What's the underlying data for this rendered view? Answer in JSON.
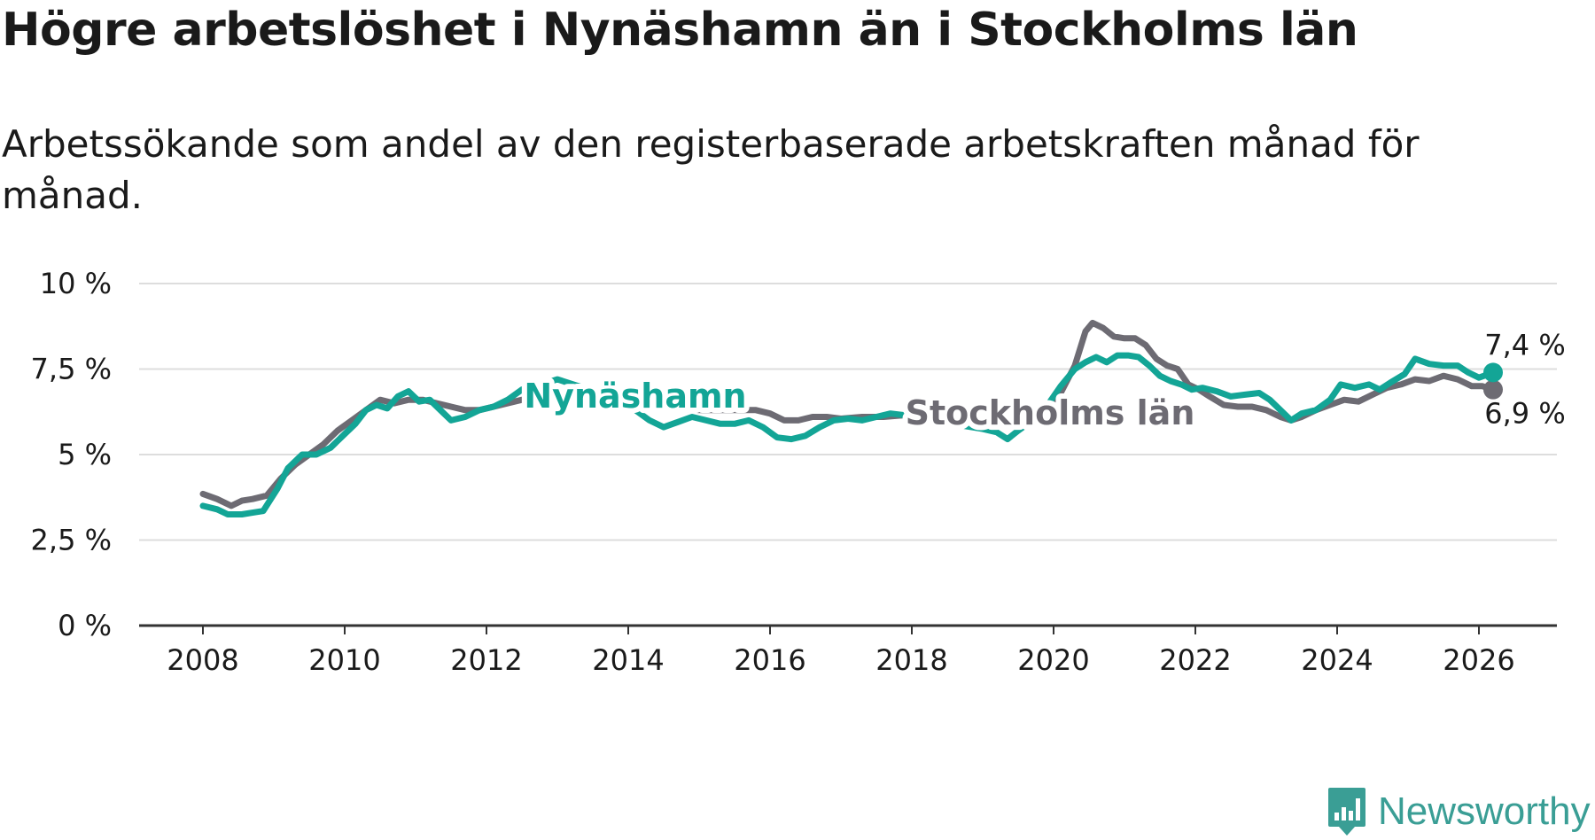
{
  "title": "Högre arbetslöshet i Nynäshamn än i Stockholms län",
  "subtitle": "Arbetssökande som andel av den registerbaserade arbetskraften månad för månad.",
  "brand": "Newsworthy",
  "colors": {
    "nynashamn": "#13a596",
    "stockholm": "#6d6b73",
    "grid": "#dddddd",
    "axis": "#333333",
    "text": "#1a1a1a"
  },
  "chart_data": {
    "type": "line",
    "title": "Högre arbetslöshet i Nynäshamn än i Stockholms län",
    "xlabel": "",
    "ylabel": "",
    "xlim": [
      2007.1,
      2027.1
    ],
    "ylim": [
      0,
      10
    ],
    "x_ticks": [
      2008,
      2010,
      2012,
      2014,
      2016,
      2018,
      2020,
      2022,
      2024,
      2026
    ],
    "x_tick_labels": [
      "2008",
      "2010",
      "2012",
      "2014",
      "2016",
      "2018",
      "2020",
      "2022",
      "2024",
      "2026"
    ],
    "y_ticks": [
      0,
      2.5,
      5,
      7.5,
      10
    ],
    "y_tick_labels": [
      "0 %",
      "2,5 %",
      "5 %",
      "7,5 %",
      "10 %"
    ],
    "grid": true,
    "series": [
      {
        "name": "Stockholms län",
        "label": "Stockholms län",
        "end_label": "6,9 %",
        "points": [
          [
            2008.0,
            3.85
          ],
          [
            2008.2,
            3.7
          ],
          [
            2008.4,
            3.5
          ],
          [
            2008.55,
            3.65
          ],
          [
            2008.7,
            3.7
          ],
          [
            2008.9,
            3.8
          ],
          [
            2009.1,
            4.3
          ],
          [
            2009.3,
            4.7
          ],
          [
            2009.5,
            5.0
          ],
          [
            2009.7,
            5.3
          ],
          [
            2009.9,
            5.7
          ],
          [
            2010.1,
            6.0
          ],
          [
            2010.3,
            6.3
          ],
          [
            2010.5,
            6.6
          ],
          [
            2010.7,
            6.5
          ],
          [
            2010.9,
            6.6
          ],
          [
            2011.1,
            6.6
          ],
          [
            2011.3,
            6.5
          ],
          [
            2011.5,
            6.4
          ],
          [
            2011.7,
            6.3
          ],
          [
            2011.9,
            6.3
          ],
          [
            2012.1,
            6.4
          ],
          [
            2012.3,
            6.5
          ],
          [
            2012.5,
            6.6
          ],
          [
            2013.0,
            6.7
          ],
          [
            2013.5,
            6.7
          ],
          [
            2014.0,
            6.6
          ],
          [
            2014.5,
            6.4
          ],
          [
            2015.0,
            6.3
          ],
          [
            2015.5,
            6.3
          ],
          [
            2015.8,
            6.3
          ],
          [
            2016.0,
            6.2
          ],
          [
            2016.2,
            6.0
          ],
          [
            2016.4,
            6.0
          ],
          [
            2016.6,
            6.1
          ],
          [
            2016.8,
            6.1
          ],
          [
            2017.0,
            6.05
          ],
          [
            2017.3,
            6.1
          ],
          [
            2017.6,
            6.1
          ],
          [
            2017.9,
            6.15
          ],
          [
            2018.1,
            6.1
          ],
          [
            2018.4,
            6.0
          ],
          [
            2018.7,
            5.95
          ],
          [
            2019.0,
            5.85
          ],
          [
            2019.3,
            5.9
          ],
          [
            2019.6,
            6.05
          ],
          [
            2019.9,
            6.3
          ],
          [
            2020.1,
            6.8
          ],
          [
            2020.3,
            7.6
          ],
          [
            2020.45,
            8.6
          ],
          [
            2020.55,
            8.85
          ],
          [
            2020.7,
            8.7
          ],
          [
            2020.85,
            8.45
          ],
          [
            2021.0,
            8.4
          ],
          [
            2021.15,
            8.4
          ],
          [
            2021.3,
            8.2
          ],
          [
            2021.45,
            7.8
          ],
          [
            2021.6,
            7.6
          ],
          [
            2021.75,
            7.5
          ],
          [
            2021.9,
            7.05
          ],
          [
            2022.05,
            6.9
          ],
          [
            2022.2,
            6.7
          ],
          [
            2022.4,
            6.45
          ],
          [
            2022.6,
            6.4
          ],
          [
            2022.8,
            6.4
          ],
          [
            2023.0,
            6.3
          ],
          [
            2023.2,
            6.1
          ],
          [
            2023.35,
            6.0
          ],
          [
            2023.5,
            6.1
          ],
          [
            2023.7,
            6.3
          ],
          [
            2023.9,
            6.45
          ],
          [
            2024.1,
            6.6
          ],
          [
            2024.3,
            6.55
          ],
          [
            2024.5,
            6.75
          ],
          [
            2024.7,
            6.95
          ],
          [
            2024.9,
            7.05
          ],
          [
            2025.1,
            7.2
          ],
          [
            2025.3,
            7.15
          ],
          [
            2025.5,
            7.3
          ],
          [
            2025.7,
            7.2
          ],
          [
            2025.9,
            7.0
          ],
          [
            2026.05,
            7.0
          ],
          [
            2026.2,
            6.9
          ]
        ]
      },
      {
        "name": "Nynäshamn",
        "label": "Nynäshamn",
        "end_label": "7,4 %",
        "points": [
          [
            2008.0,
            3.5
          ],
          [
            2008.2,
            3.4
          ],
          [
            2008.35,
            3.25
          ],
          [
            2008.55,
            3.25
          ],
          [
            2008.7,
            3.3
          ],
          [
            2008.85,
            3.35
          ],
          [
            2009.05,
            4.0
          ],
          [
            2009.2,
            4.6
          ],
          [
            2009.4,
            5.0
          ],
          [
            2009.6,
            5.0
          ],
          [
            2009.8,
            5.2
          ],
          [
            2010.0,
            5.6
          ],
          [
            2010.15,
            5.9
          ],
          [
            2010.3,
            6.3
          ],
          [
            2010.45,
            6.45
          ],
          [
            2010.6,
            6.35
          ],
          [
            2010.75,
            6.7
          ],
          [
            2010.9,
            6.85
          ],
          [
            2011.05,
            6.55
          ],
          [
            2011.2,
            6.6
          ],
          [
            2011.35,
            6.3
          ],
          [
            2011.5,
            6.0
          ],
          [
            2011.7,
            6.1
          ],
          [
            2011.9,
            6.3
          ],
          [
            2012.1,
            6.4
          ],
          [
            2012.3,
            6.6
          ],
          [
            2012.5,
            6.9
          ],
          [
            2012.7,
            7.0
          ],
          [
            2013.0,
            7.2
          ],
          [
            2013.3,
            7.0
          ],
          [
            2013.6,
            6.8
          ],
          [
            2013.9,
            6.5
          ],
          [
            2014.1,
            6.3
          ],
          [
            2014.3,
            6.0
          ],
          [
            2014.5,
            5.8
          ],
          [
            2014.7,
            5.95
          ],
          [
            2014.9,
            6.1
          ],
          [
            2015.1,
            6.0
          ],
          [
            2015.3,
            5.9
          ],
          [
            2015.5,
            5.9
          ],
          [
            2015.7,
            6.0
          ],
          [
            2015.9,
            5.8
          ],
          [
            2016.1,
            5.5
          ],
          [
            2016.3,
            5.45
          ],
          [
            2016.5,
            5.55
          ],
          [
            2016.7,
            5.8
          ],
          [
            2016.9,
            6.0
          ],
          [
            2017.1,
            6.05
          ],
          [
            2017.3,
            6.0
          ],
          [
            2017.5,
            6.1
          ],
          [
            2017.7,
            6.2
          ],
          [
            2017.9,
            6.15
          ],
          [
            2018.1,
            6.05
          ],
          [
            2018.4,
            5.9
          ],
          [
            2018.7,
            5.85
          ],
          [
            2019.0,
            5.75
          ],
          [
            2019.2,
            5.65
          ],
          [
            2019.35,
            5.45
          ],
          [
            2019.5,
            5.7
          ],
          [
            2019.7,
            6.0
          ],
          [
            2019.9,
            6.4
          ],
          [
            2020.1,
            7.0
          ],
          [
            2020.3,
            7.5
          ],
          [
            2020.45,
            7.7
          ],
          [
            2020.6,
            7.85
          ],
          [
            2020.75,
            7.7
          ],
          [
            2020.9,
            7.9
          ],
          [
            2021.05,
            7.9
          ],
          [
            2021.2,
            7.85
          ],
          [
            2021.35,
            7.6
          ],
          [
            2021.5,
            7.3
          ],
          [
            2021.65,
            7.15
          ],
          [
            2021.8,
            7.05
          ],
          [
            2021.95,
            6.9
          ],
          [
            2022.1,
            6.95
          ],
          [
            2022.3,
            6.85
          ],
          [
            2022.5,
            6.7
          ],
          [
            2022.7,
            6.75
          ],
          [
            2022.9,
            6.8
          ],
          [
            2023.05,
            6.6
          ],
          [
            2023.2,
            6.3
          ],
          [
            2023.35,
            6.0
          ],
          [
            2023.5,
            6.2
          ],
          [
            2023.7,
            6.3
          ],
          [
            2023.9,
            6.6
          ],
          [
            2024.05,
            7.05
          ],
          [
            2024.25,
            6.95
          ],
          [
            2024.45,
            7.05
          ],
          [
            2024.6,
            6.9
          ],
          [
            2024.75,
            7.1
          ],
          [
            2024.95,
            7.35
          ],
          [
            2025.1,
            7.8
          ],
          [
            2025.3,
            7.65
          ],
          [
            2025.5,
            7.6
          ],
          [
            2025.7,
            7.6
          ],
          [
            2025.85,
            7.4
          ],
          [
            2026.0,
            7.25
          ],
          [
            2026.2,
            7.4
          ]
        ]
      }
    ]
  }
}
